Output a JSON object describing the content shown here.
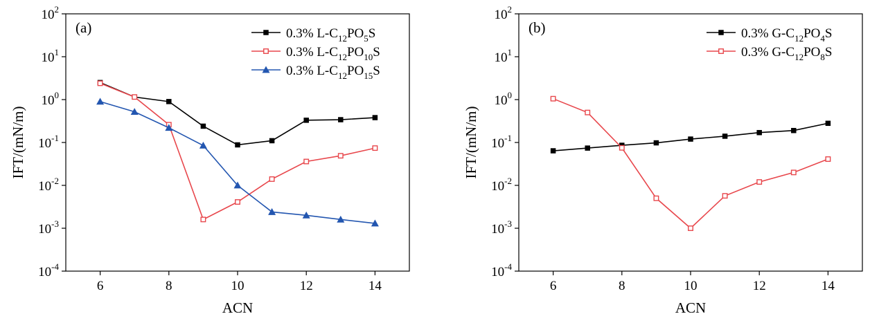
{
  "chart_data": [
    {
      "type": "line",
      "panel_label": "(a)",
      "xlabel": "ACN",
      "ylabel": "IFT/(mN/m)",
      "yscale": "log",
      "xlim": [
        5,
        15
      ],
      "ylim": [
        0.0001,
        100
      ],
      "xticks": [
        6,
        8,
        10,
        12,
        14
      ],
      "yticks": [
        {
          "value": 100,
          "base": "10",
          "exp": "2"
        },
        {
          "value": 10,
          "base": "10",
          "exp": "1"
        },
        {
          "value": 1,
          "base": "10",
          "exp": "0"
        },
        {
          "value": 0.1,
          "base": "10",
          "exp": "-1"
        },
        {
          "value": 0.01,
          "base": "10",
          "exp": "-2"
        },
        {
          "value": 0.001,
          "base": "10",
          "exp": "-3"
        },
        {
          "value": 0.0001,
          "base": "10",
          "exp": "-4"
        }
      ],
      "legend_position": "top-right",
      "series": [
        {
          "name": "0.3% L-C12PO5S",
          "legend_parts": [
            {
              "t": "0.3% L-C",
              "sub": false
            },
            {
              "t": "12",
              "sub": true
            },
            {
              "t": "PO",
              "sub": false
            },
            {
              "t": "5",
              "sub": true
            },
            {
              "t": "S",
              "sub": false
            }
          ],
          "color": "#000000",
          "marker": "square-filled",
          "x": [
            6,
            7,
            8,
            9,
            10,
            11,
            12,
            13,
            14
          ],
          "y": [
            2.5,
            1.15,
            0.9,
            0.24,
            0.088,
            0.11,
            0.33,
            0.34,
            0.38
          ]
        },
        {
          "name": "0.3% L-C12PO10S",
          "legend_parts": [
            {
              "t": "0.3% L-C",
              "sub": false
            },
            {
              "t": "12",
              "sub": true
            },
            {
              "t": "PO",
              "sub": false
            },
            {
              "t": "10",
              "sub": true
            },
            {
              "t": "S",
              "sub": false
            }
          ],
          "color": "#e8474c",
          "marker": "square-open",
          "x": [
            6,
            7,
            8,
            9,
            10,
            11,
            12,
            13,
            14
          ],
          "y": [
            2.4,
            1.15,
            0.26,
            0.0016,
            0.0041,
            0.014,
            0.036,
            0.049,
            0.074
          ]
        },
        {
          "name": "0.3% L-C12PO15S",
          "legend_parts": [
            {
              "t": "0.3% L-C",
              "sub": false
            },
            {
              "t": "12",
              "sub": true
            },
            {
              "t": "PO",
              "sub": false
            },
            {
              "t": "15",
              "sub": true
            },
            {
              "t": "S",
              "sub": false
            }
          ],
          "color": "#2356b0",
          "marker": "triangle-filled",
          "x": [
            6,
            7,
            8,
            9,
            10,
            11,
            12,
            13,
            14
          ],
          "y": [
            0.9,
            0.52,
            0.22,
            0.085,
            0.01,
            0.0024,
            0.002,
            0.0016,
            0.0013
          ]
        }
      ]
    },
    {
      "type": "line",
      "panel_label": "(b)",
      "xlabel": "ACN",
      "ylabel": "IFT/(mN/m)",
      "yscale": "log",
      "xlim": [
        5,
        15
      ],
      "ylim": [
        0.0001,
        100
      ],
      "xticks": [
        6,
        8,
        10,
        12,
        14
      ],
      "yticks": [
        {
          "value": 100,
          "base": "10",
          "exp": "2"
        },
        {
          "value": 10,
          "base": "10",
          "exp": "1"
        },
        {
          "value": 1,
          "base": "10",
          "exp": "0"
        },
        {
          "value": 0.1,
          "base": "10",
          "exp": "-1"
        },
        {
          "value": 0.01,
          "base": "10",
          "exp": "-2"
        },
        {
          "value": 0.001,
          "base": "10",
          "exp": "-3"
        },
        {
          "value": 0.0001,
          "base": "10",
          "exp": "-4"
        }
      ],
      "legend_position": "top-right",
      "series": [
        {
          "name": "0.3% G-C12PO4S",
          "legend_parts": [
            {
              "t": "0.3% G-C",
              "sub": false
            },
            {
              "t": "12",
              "sub": true
            },
            {
              "t": "PO",
              "sub": false
            },
            {
              "t": "4",
              "sub": true
            },
            {
              "t": "S",
              "sub": false
            }
          ],
          "color": "#000000",
          "marker": "square-filled",
          "x": [
            6,
            7,
            8,
            9,
            10,
            11,
            12,
            13,
            14
          ],
          "y": [
            0.064,
            0.074,
            0.086,
            0.098,
            0.12,
            0.14,
            0.17,
            0.19,
            0.28
          ]
        },
        {
          "name": "0.3% G-C12PO8S",
          "legend_parts": [
            {
              "t": "0.3% G-C",
              "sub": false
            },
            {
              "t": "12",
              "sub": true
            },
            {
              "t": "PO",
              "sub": false
            },
            {
              "t": "8",
              "sub": true
            },
            {
              "t": "S",
              "sub": false
            }
          ],
          "color": "#e8474c",
          "marker": "square-open",
          "x": [
            6,
            7,
            8,
            9,
            10,
            11,
            12,
            13,
            14
          ],
          "y": [
            1.05,
            0.5,
            0.075,
            0.005,
            0.001,
            0.0057,
            0.012,
            0.02,
            0.041
          ]
        }
      ]
    }
  ]
}
